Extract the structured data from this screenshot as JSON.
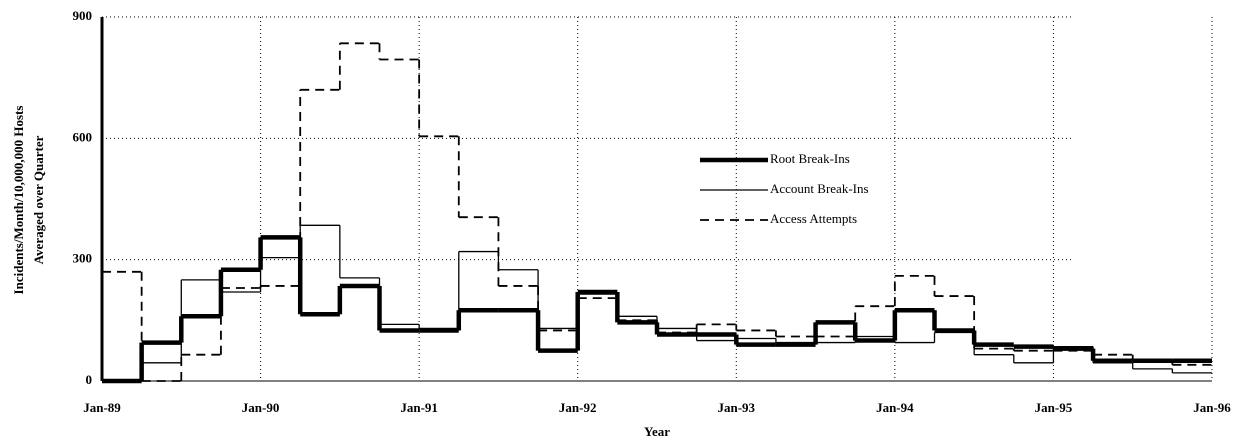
{
  "chart_data": {
    "type": "step",
    "x_label": "Year",
    "y_label": [
      "Incidents/Month/10,000,000 Hosts",
      "Averaged over Quarter"
    ],
    "x": [
      1989,
      1989.25,
      1989.5,
      1989.75,
      1990,
      1990.25,
      1990.5,
      1990.75,
      1991,
      1991.25,
      1991.5,
      1991.75,
      1992,
      1992.25,
      1992.5,
      1992.75,
      1993,
      1993.25,
      1993.5,
      1993.75,
      1994,
      1994.25,
      1994.5,
      1994.75,
      1995,
      1995.25,
      1995.5,
      1995.75
    ],
    "step_width": 0.25,
    "series": [
      {
        "name": "Root Break-Ins",
        "color": "#000",
        "width": 4.5,
        "dash": "none",
        "values": [
          0,
          95,
          160,
          275,
          355,
          165,
          235,
          125,
          125,
          175,
          175,
          75,
          220,
          145,
          115,
          115,
          90,
          90,
          145,
          100,
          175,
          125,
          90,
          85,
          80,
          50,
          50,
          50
        ]
      },
      {
        "name": "Account Break-Ins",
        "color": "#000",
        "width": 1.3,
        "dash": "none",
        "values": [
          0,
          45,
          250,
          220,
          305,
          385,
          255,
          140,
          130,
          320,
          275,
          130,
          215,
          160,
          130,
          100,
          105,
          95,
          95,
          110,
          95,
          120,
          65,
          45,
          85,
          45,
          30,
          20
        ]
      },
      {
        "name": "Access Attempts",
        "color": "#000",
        "width": 1.8,
        "dash": "9 6",
        "values": [
          270,
          0,
          65,
          230,
          235,
          720,
          835,
          795,
          605,
          405,
          235,
          125,
          205,
          150,
          120,
          140,
          125,
          110,
          110,
          185,
          260,
          210,
          80,
          75,
          75,
          65,
          50,
          40
        ]
      }
    ],
    "xlim": [
      1989,
      1996
    ],
    "xticks": [
      {
        "value": 1989,
        "label": "Jan-89"
      },
      {
        "value": 1990,
        "label": "Jan-90"
      },
      {
        "value": 1991,
        "label": "Jan-91"
      },
      {
        "value": 1992,
        "label": "Jan-92"
      },
      {
        "value": 1993,
        "label": "Jan-93"
      },
      {
        "value": 1994,
        "label": "Jan-94"
      },
      {
        "value": 1995,
        "label": "Jan-95"
      },
      {
        "value": 1996,
        "label": "Jan-96"
      }
    ],
    "ylim": [
      0,
      900
    ],
    "yticks": [
      0,
      300,
      600,
      900
    ],
    "grid": true,
    "legend": "upper-center-right"
  }
}
